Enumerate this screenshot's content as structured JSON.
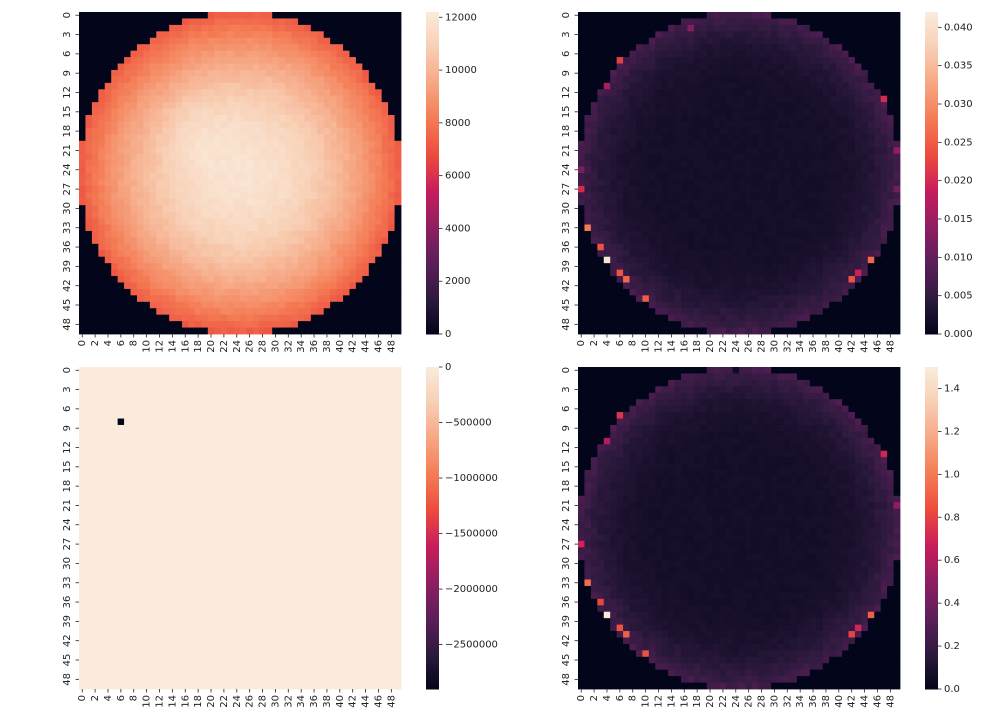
{
  "chart_data": [
    {
      "type": "heatmap",
      "panel": "top-left",
      "pattern": "disk",
      "rows": 50,
      "cols": 50,
      "edge_value": 7200,
      "center_value": 11800,
      "peak_value": 12200,
      "clim": [
        0,
        12200
      ],
      "colorbar_ticks": [
        0,
        2000,
        4000,
        6000,
        8000,
        10000,
        12000
      ],
      "colorbar_tick_labels": [
        "0",
        "2000",
        "4000",
        "6000",
        "8000",
        "10000",
        "12000"
      ],
      "x_tick_labels": [
        "0",
        "2",
        "4",
        "6",
        "8",
        "10",
        "12",
        "14",
        "16",
        "18",
        "20",
        "22",
        "24",
        "26",
        "28",
        "30",
        "32",
        "34",
        "36",
        "38",
        "40",
        "42",
        "44",
        "46",
        "48"
      ],
      "y_tick_labels": [
        "0",
        "3",
        "6",
        "9",
        "12",
        "15",
        "18",
        "21",
        "24",
        "27",
        "30",
        "33",
        "36",
        "39",
        "42",
        "45",
        "48"
      ]
    },
    {
      "type": "heatmap",
      "panel": "top-right",
      "pattern": "ring",
      "rows": 50,
      "cols": 50,
      "interior_value": 0.002,
      "rim_value": 0.007,
      "hotspots": [
        {
          "row": 38,
          "col": 4,
          "value": 0.041
        },
        {
          "row": 33,
          "col": 1,
          "value": 0.028
        },
        {
          "row": 36,
          "col": 3,
          "value": 0.024
        },
        {
          "row": 40,
          "col": 6,
          "value": 0.024
        },
        {
          "row": 41,
          "col": 7,
          "value": 0.026
        },
        {
          "row": 44,
          "col": 10,
          "value": 0.025
        },
        {
          "row": 7,
          "col": 6,
          "value": 0.022
        },
        {
          "row": 11,
          "col": 4,
          "value": 0.016
        },
        {
          "row": 41,
          "col": 42,
          "value": 0.024
        },
        {
          "row": 40,
          "col": 43,
          "value": 0.019
        },
        {
          "row": 38,
          "col": 45,
          "value": 0.026
        },
        {
          "row": 13,
          "col": 47,
          "value": 0.02
        },
        {
          "row": 21,
          "col": 49,
          "value": 0.014
        },
        {
          "row": 27,
          "col": 49,
          "value": 0.011
        },
        {
          "row": 2,
          "col": 17,
          "value": 0.013
        },
        {
          "row": 27,
          "col": 0,
          "value": 0.02
        },
        {
          "row": 24,
          "col": 0,
          "value": 0.012
        }
      ],
      "clim": [
        0,
        0.042
      ],
      "colorbar_ticks": [
        0,
        0.005,
        0.01,
        0.015,
        0.02,
        0.025,
        0.03,
        0.035,
        0.04
      ],
      "colorbar_tick_labels": [
        "0.000",
        "0.005",
        "0.010",
        "0.015",
        "0.020",
        "0.025",
        "0.030",
        "0.035",
        "0.040"
      ],
      "x_tick_labels": [
        "0",
        "2",
        "4",
        "6",
        "8",
        "10",
        "12",
        "14",
        "16",
        "18",
        "20",
        "22",
        "24",
        "26",
        "28",
        "30",
        "32",
        "34",
        "36",
        "38",
        "40",
        "42",
        "44",
        "46",
        "48"
      ],
      "y_tick_labels": [
        "0",
        "3",
        "6",
        "9",
        "12",
        "15",
        "18",
        "21",
        "24",
        "27",
        "30",
        "33",
        "36",
        "39",
        "42",
        "45",
        "48"
      ]
    },
    {
      "type": "heatmap",
      "panel": "bottom-left",
      "pattern": "uniform",
      "rows": 50,
      "cols": 50,
      "background_value": 0,
      "hotspots": [
        {
          "row": 8,
          "col": 6,
          "value": -2900000
        }
      ],
      "clim": [
        -2900000,
        0
      ],
      "colorbar_ticks": [
        0,
        -500000,
        -1000000,
        -1500000,
        -2000000,
        -2500000
      ],
      "colorbar_tick_labels": [
        "0",
        "−500000",
        "−1000000",
        "−1500000",
        "−2000000",
        "−2500000"
      ],
      "x_tick_labels": [
        "0",
        "2",
        "4",
        "6",
        "8",
        "10",
        "12",
        "14",
        "16",
        "18",
        "20",
        "22",
        "24",
        "26",
        "28",
        "30",
        "32",
        "34",
        "36",
        "38",
        "40",
        "42",
        "44",
        "46",
        "48"
      ],
      "y_tick_labels": [
        "0",
        "3",
        "6",
        "9",
        "12",
        "15",
        "18",
        "21",
        "24",
        "27",
        "30",
        "33",
        "36",
        "39",
        "42",
        "45",
        "48"
      ]
    },
    {
      "type": "heatmap",
      "panel": "bottom-right",
      "pattern": "ring",
      "rows": 50,
      "cols": 50,
      "interior_value": 0.07,
      "rim_value": 0.25,
      "hotspots": [
        {
          "row": 38,
          "col": 4,
          "value": 1.48
        },
        {
          "row": 33,
          "col": 1,
          "value": 0.95
        },
        {
          "row": 36,
          "col": 3,
          "value": 0.82
        },
        {
          "row": 40,
          "col": 6,
          "value": 0.85
        },
        {
          "row": 41,
          "col": 7,
          "value": 0.9
        },
        {
          "row": 44,
          "col": 10,
          "value": 0.85
        },
        {
          "row": 7,
          "col": 6,
          "value": 0.75
        },
        {
          "row": 11,
          "col": 4,
          "value": 0.6
        },
        {
          "row": 41,
          "col": 42,
          "value": 0.8
        },
        {
          "row": 40,
          "col": 43,
          "value": 0.7
        },
        {
          "row": 38,
          "col": 45,
          "value": 0.9
        },
        {
          "row": 13,
          "col": 47,
          "value": 0.7
        },
        {
          "row": 21,
          "col": 49,
          "value": 0.5
        },
        {
          "row": 27,
          "col": 0,
          "value": 0.7
        },
        {
          "row": 0,
          "col": 24,
          "value": 0.05
        }
      ],
      "clim": [
        0,
        1.5
      ],
      "colorbar_ticks": [
        0,
        0.2,
        0.4,
        0.6,
        0.8,
        1.0,
        1.2,
        1.4
      ],
      "colorbar_tick_labels": [
        "0.0",
        "0.2",
        "0.4",
        "0.6",
        "0.8",
        "1.0",
        "1.2",
        "1.4"
      ],
      "x_tick_labels": [
        "0",
        "2",
        "4",
        "6",
        "8",
        "10",
        "12",
        "14",
        "16",
        "18",
        "20",
        "22",
        "24",
        "26",
        "28",
        "30",
        "32",
        "34",
        "36",
        "38",
        "40",
        "42",
        "44",
        "46",
        "48"
      ],
      "y_tick_labels": [
        "0",
        "3",
        "6",
        "9",
        "12",
        "15",
        "18",
        "21",
        "24",
        "27",
        "30",
        "33",
        "36",
        "39",
        "42",
        "45",
        "48"
      ]
    }
  ],
  "colormap": "rocket",
  "colormap_stops": [
    "#03051a",
    "#2e1a3e",
    "#5c1f5a",
    "#8f1e61",
    "#c81d5c",
    "#ec4c3e",
    "#f47b54",
    "#f6a683",
    "#f8cfb4",
    "#faebdd"
  ]
}
